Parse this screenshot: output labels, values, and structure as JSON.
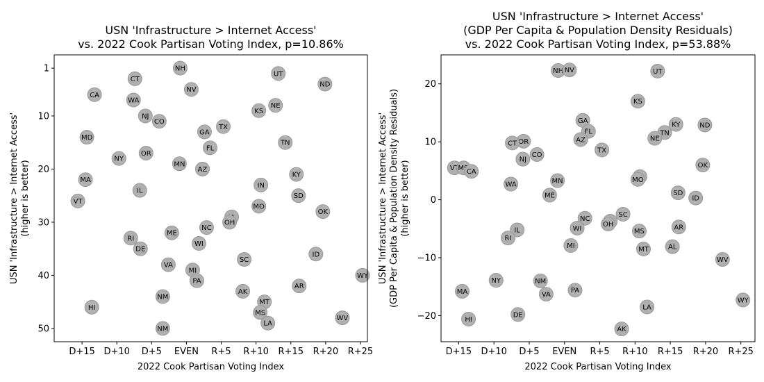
{
  "chart_data": [
    {
      "type": "scatter",
      "title_lines": [
        "USN 'Infrastructure > Internet Access'",
        "vs. 2022 Cook Partisan Voting Index, p=10.86%"
      ],
      "xlabel": "2022 Cook Partisan Voting Index",
      "ylabel_lines": [
        "USN 'Infrastructure > Internet Access'",
        "(higher is better)"
      ],
      "xlim": [
        -19,
        26
      ],
      "ylim": [
        52.5,
        -1.5
      ],
      "y_inverted": true,
      "grid": false,
      "x_ticks": [
        {
          "v": -15,
          "label": "D+15"
        },
        {
          "v": -10,
          "label": "D+10"
        },
        {
          "v": -5,
          "label": "D+5"
        },
        {
          "v": 0,
          "label": "EVEN"
        },
        {
          "v": 5,
          "label": "R+5"
        },
        {
          "v": 10,
          "label": "R+10"
        },
        {
          "v": 15,
          "label": "R+15"
        },
        {
          "v": 20,
          "label": "R+20"
        },
        {
          "v": 25,
          "label": "R+25"
        }
      ],
      "y_ticks": [
        {
          "v": 1,
          "label": "1"
        },
        {
          "v": 10,
          "label": "10"
        },
        {
          "v": 20,
          "label": "20"
        },
        {
          "v": 30,
          "label": "30"
        },
        {
          "v": 40,
          "label": "40"
        },
        {
          "v": 50,
          "label": "50"
        }
      ],
      "points": [
        {
          "label": "NH",
          "x": -0.9,
          "y": 1
        },
        {
          "label": "UT",
          "x": 13.2,
          "y": 2
        },
        {
          "label": "CT",
          "x": -7.4,
          "y": 3
        },
        {
          "label": "ND",
          "x": 19.9,
          "y": 4
        },
        {
          "label": "NV",
          "x": 0.7,
          "y": 5
        },
        {
          "label": "CA",
          "x": -13.2,
          "y": 6
        },
        {
          "label": "WA",
          "x": -7.6,
          "y": 7
        },
        {
          "label": "NE",
          "x": 12.8,
          "y": 8
        },
        {
          "label": "KS",
          "x": 10.4,
          "y": 9
        },
        {
          "label": "NJ",
          "x": -5.9,
          "y": 10
        },
        {
          "label": "CO",
          "x": -3.9,
          "y": 11
        },
        {
          "label": "TX",
          "x": 5.3,
          "y": 12
        },
        {
          "label": "GA",
          "x": 2.6,
          "y": 13
        },
        {
          "label": "MD",
          "x": -14.3,
          "y": 14
        },
        {
          "label": "TN",
          "x": 14.2,
          "y": 15
        },
        {
          "label": "FL",
          "x": 3.4,
          "y": 16
        },
        {
          "label": "OR",
          "x": -5.8,
          "y": 17
        },
        {
          "label": "NY",
          "x": -9.7,
          "y": 18
        },
        {
          "label": "MN",
          "x": -1.0,
          "y": 19
        },
        {
          "label": "AZ",
          "x": 2.3,
          "y": 20
        },
        {
          "label": "KY",
          "x": 15.8,
          "y": 21
        },
        {
          "label": "MA",
          "x": -14.5,
          "y": 22
        },
        {
          "label": "IN",
          "x": 10.7,
          "y": 23
        },
        {
          "label": "IL",
          "x": -6.7,
          "y": 24
        },
        {
          "label": "SD",
          "x": 16.1,
          "y": 25
        },
        {
          "label": "VT",
          "x": -15.6,
          "y": 26
        },
        {
          "label": "MO",
          "x": 10.4,
          "y": 27
        },
        {
          "label": "OK",
          "x": 19.6,
          "y": 28
        },
        {
          "label": "IA",
          "x": 6.5,
          "y": 29
        },
        {
          "label": "OH",
          "x": 6.2,
          "y": 30
        },
        {
          "label": "NC",
          "x": 2.9,
          "y": 31
        },
        {
          "label": "ME",
          "x": -2.1,
          "y": 32
        },
        {
          "label": "RI",
          "x": -8.0,
          "y": 33
        },
        {
          "label": "WI",
          "x": 1.8,
          "y": 34
        },
        {
          "label": "DE",
          "x": -6.6,
          "y": 35
        },
        {
          "label": "ID",
          "x": 18.6,
          "y": 36
        },
        {
          "label": "SC",
          "x": 8.3,
          "y": 37
        },
        {
          "label": "VA",
          "x": -2.6,
          "y": 38
        },
        {
          "label": "MI",
          "x": 0.9,
          "y": 39
        },
        {
          "label": "WY",
          "x": 25.3,
          "y": 40
        },
        {
          "label": "PA",
          "x": 1.5,
          "y": 41
        },
        {
          "label": "AR",
          "x": 16.2,
          "y": 42
        },
        {
          "label": "AK",
          "x": 8.1,
          "y": 43
        },
        {
          "label": "NM",
          "x": -3.4,
          "y": 44
        },
        {
          "label": "MT",
          "x": 11.2,
          "y": 45
        },
        {
          "label": "HI",
          "x": -13.6,
          "y": 46
        },
        {
          "label": "MS",
          "x": 10.6,
          "y": 47
        },
        {
          "label": "WV",
          "x": 22.4,
          "y": 48
        },
        {
          "label": "LA",
          "x": 11.7,
          "y": 49
        },
        {
          "label": "NM",
          "x": -3.4,
          "y": 50
        }
      ]
    },
    {
      "type": "scatter",
      "title_lines": [
        "USN 'Infrastructure > Internet Access'",
        "(GDP Per Capita & Population Density Residuals)",
        "vs. 2022 Cook Partisan Voting Index, p=53.88%"
      ],
      "xlabel": "2022 Cook Partisan Voting Index",
      "ylabel_lines": [
        "USN 'Infrastructure > Internet Access'",
        "(GDP Per Capita & Population Density Residuals)",
        "(higher is better)"
      ],
      "xlim": [
        -17.5,
        27
      ],
      "ylim": [
        -24.5,
        25
      ],
      "y_inverted": false,
      "grid": false,
      "x_ticks": [
        {
          "v": -15,
          "label": "D+15"
        },
        {
          "v": -10,
          "label": "D+10"
        },
        {
          "v": -5,
          "label": "D+5"
        },
        {
          "v": 0,
          "label": "EVEN"
        },
        {
          "v": 5,
          "label": "R+5"
        },
        {
          "v": 10,
          "label": "R+10"
        },
        {
          "v": 15,
          "label": "R+15"
        },
        {
          "v": 20,
          "label": "R+20"
        },
        {
          "v": 25,
          "label": "R+25"
        }
      ],
      "y_ticks": [
        {
          "v": 20,
          "label": "20"
        },
        {
          "v": 10,
          "label": "10"
        },
        {
          "v": 0,
          "label": "0"
        },
        {
          "v": -10,
          "label": "−10"
        },
        {
          "v": -20,
          "label": "−20"
        }
      ],
      "points": [
        {
          "label": "NH",
          "x": -0.9,
          "y": 22.3
        },
        {
          "label": "NV",
          "x": 0.7,
          "y": 22.4
        },
        {
          "label": "UT",
          "x": 13.2,
          "y": 22.2
        },
        {
          "label": "KS",
          "x": 10.4,
          "y": 17.0
        },
        {
          "label": "GA",
          "x": 2.6,
          "y": 13.7
        },
        {
          "label": "KY",
          "x": 15.8,
          "y": 13.0
        },
        {
          "label": "ND",
          "x": 19.9,
          "y": 12.9
        },
        {
          "label": "FL",
          "x": 3.4,
          "y": 11.8
        },
        {
          "label": "TN",
          "x": 14.2,
          "y": 11.6
        },
        {
          "label": "AZ",
          "x": 2.3,
          "y": 10.4
        },
        {
          "label": "NE",
          "x": 12.8,
          "y": 10.6
        },
        {
          "label": "OR",
          "x": -5.8,
          "y": 10.1
        },
        {
          "label": "CT",
          "x": -7.4,
          "y": 9.8
        },
        {
          "label": "TX",
          "x": 5.3,
          "y": 8.6
        },
        {
          "label": "CO",
          "x": -3.9,
          "y": 7.8
        },
        {
          "label": "NJ",
          "x": -5.9,
          "y": 7.0
        },
        {
          "label": "OK",
          "x": 19.6,
          "y": 6.0
        },
        {
          "label": "VT",
          "x": -15.6,
          "y": 5.5
        },
        {
          "label": "MD",
          "x": -14.3,
          "y": 5.5
        },
        {
          "label": "CA",
          "x": -13.2,
          "y": 4.9
        },
        {
          "label": "IN",
          "x": 10.7,
          "y": 4.0
        },
        {
          "label": "MO",
          "x": 10.4,
          "y": 3.5
        },
        {
          "label": "MN",
          "x": -1.0,
          "y": 3.3
        },
        {
          "label": "WA",
          "x": -7.6,
          "y": 2.7
        },
        {
          "label": "SD",
          "x": 16.1,
          "y": 1.2
        },
        {
          "label": "ME",
          "x": -2.1,
          "y": 0.8
        },
        {
          "label": "ID",
          "x": 18.6,
          "y": 0.3
        },
        {
          "label": "SC",
          "x": 8.3,
          "y": -2.5
        },
        {
          "label": "NC",
          "x": 2.9,
          "y": -3.2
        },
        {
          "label": "IA",
          "x": 6.5,
          "y": -3.7
        },
        {
          "label": "OH",
          "x": 6.2,
          "y": -4.2
        },
        {
          "label": "AR",
          "x": 16.2,
          "y": -4.7
        },
        {
          "label": "WI",
          "x": 1.8,
          "y": -4.9
        },
        {
          "label": "IL",
          "x": -6.7,
          "y": -5.2
        },
        {
          "label": "MS",
          "x": 10.6,
          "y": -5.4
        },
        {
          "label": "RI",
          "x": -8.0,
          "y": -6.6
        },
        {
          "label": "MI",
          "x": 0.9,
          "y": -7.9
        },
        {
          "label": "AL",
          "x": 15.3,
          "y": -8.1
        },
        {
          "label": "MT",
          "x": 11.2,
          "y": -8.5
        },
        {
          "label": "WV",
          "x": 22.4,
          "y": -10.3
        },
        {
          "label": "NY",
          "x": -9.7,
          "y": -13.9
        },
        {
          "label": "NM",
          "x": -3.4,
          "y": -14.0
        },
        {
          "label": "VA",
          "x": -2.6,
          "y": -16.3
        },
        {
          "label": "PA",
          "x": 1.5,
          "y": -15.6
        },
        {
          "label": "MA",
          "x": -14.5,
          "y": -15.8
        },
        {
          "label": "WY",
          "x": 25.3,
          "y": -17.3
        },
        {
          "label": "LA",
          "x": 11.7,
          "y": -18.5
        },
        {
          "label": "DE",
          "x": -6.6,
          "y": -19.8
        },
        {
          "label": "HI",
          "x": -13.6,
          "y": -20.6
        },
        {
          "label": "AK",
          "x": 8.1,
          "y": -22.3
        }
      ]
    }
  ]
}
